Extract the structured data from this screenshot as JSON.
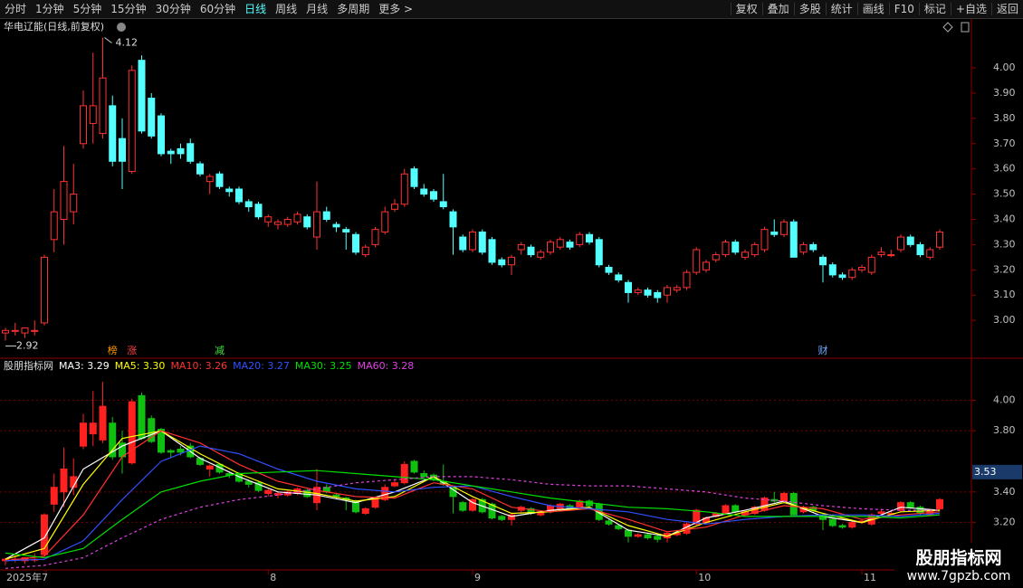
{
  "toolbar": {
    "left": [
      "分时",
      "1分钟",
      "5分钟",
      "15分钟",
      "30分钟",
      "60分钟",
      "日线",
      "周线",
      "月线",
      "多周期",
      "更多 >"
    ],
    "active_index": 6,
    "right": [
      "复权",
      "叠加",
      "多股",
      "统计",
      "画线",
      "F10",
      "标记",
      "+自选",
      "返回"
    ]
  },
  "chart_data": {
    "type": "candlestick",
    "title": "华电辽能(日线,前复权)",
    "up_color": "#ff3232",
    "down_color": "#54ffff",
    "ylim": [
      2.85,
      4.19
    ],
    "yticks": [
      {
        "value": 3,
        "label": "3.00"
      },
      {
        "value": 3.1,
        "label": "3.10"
      },
      {
        "value": 3.2,
        "label": "3.20"
      },
      {
        "value": 3.3,
        "label": "3.30"
      },
      {
        "value": 3.4,
        "label": "3.40"
      },
      {
        "value": 3.5,
        "label": "3.50"
      },
      {
        "value": 3.6,
        "label": "3.60"
      },
      {
        "value": 3.7,
        "label": "3.70"
      },
      {
        "value": 3.8,
        "label": "3.80"
      },
      {
        "value": 3.9,
        "label": "3.90"
      },
      {
        "value": 4,
        "label": "4.00"
      }
    ],
    "high_marker": 4.12,
    "low_marker": 2.92,
    "events": [
      {
        "index": 11,
        "label": "榜",
        "color": "#ff9900"
      },
      {
        "index": 13,
        "label": "涨",
        "color": "#ff4040"
      },
      {
        "index": 22,
        "label": "减",
        "color": "#40e040"
      },
      {
        "index": 84,
        "label": "财",
        "color": "#6fa8ff"
      }
    ],
    "categories": [
      "2025年7",
      null,
      null,
      null,
      null,
      null,
      null,
      null,
      null,
      null,
      null,
      null,
      null,
      null,
      null,
      null,
      null,
      null,
      null,
      null,
      null,
      null,
      null,
      null,
      null,
      null,
      null,
      "8",
      null,
      null,
      null,
      null,
      null,
      null,
      null,
      null,
      null,
      null,
      null,
      null,
      null,
      null,
      null,
      null,
      null,
      null,
      null,
      null,
      "9",
      null,
      null,
      null,
      null,
      null,
      null,
      null,
      null,
      null,
      null,
      null,
      null,
      null,
      null,
      null,
      null,
      null,
      null,
      null,
      null,
      null,
      null,
      "10",
      null,
      null,
      null,
      null,
      null,
      null,
      null,
      null,
      null,
      null,
      null,
      null,
      null,
      null,
      null,
      null,
      "11",
      null,
      null,
      null,
      null,
      null,
      null,
      null,
      null,
      null,
      null
    ],
    "candles": [
      [
        2.95,
        2.97,
        2.92,
        2.96
      ],
      [
        2.96,
        2.99,
        2.94,
        2.96
      ],
      [
        2.95,
        2.97,
        2.93,
        2.97
      ],
      [
        2.96,
        3.0,
        2.94,
        2.96
      ],
      [
        2.99,
        3.26,
        2.98,
        3.25
      ],
      [
        3.32,
        3.52,
        3.27,
        3.43
      ],
      [
        3.4,
        3.69,
        3.3,
        3.55
      ],
      [
        3.43,
        3.62,
        3.38,
        3.5
      ],
      [
        3.7,
        3.91,
        3.68,
        3.85
      ],
      [
        3.78,
        4.06,
        3.7,
        3.85
      ],
      [
        3.74,
        4.12,
        3.72,
        3.96
      ],
      [
        3.85,
        3.89,
        3.61,
        3.63
      ],
      [
        3.72,
        3.8,
        3.52,
        3.63
      ],
      [
        3.59,
        4.01,
        3.58,
        3.99
      ],
      [
        4.03,
        4.05,
        3.74,
        3.75
      ],
      [
        3.88,
        3.9,
        3.72,
        3.73
      ],
      [
        3.81,
        3.82,
        3.65,
        3.66
      ],
      [
        3.67,
        3.68,
        3.62,
        3.66
      ],
      [
        3.68,
        3.7,
        3.64,
        3.66
      ],
      [
        3.7,
        3.72,
        3.62,
        3.63
      ],
      [
        3.62,
        3.63,
        3.57,
        3.58
      ],
      [
        3.55,
        3.58,
        3.5,
        3.57
      ],
      [
        3.58,
        3.59,
        3.52,
        3.53
      ],
      [
        3.52,
        3.53,
        3.49,
        3.51
      ],
      [
        3.52,
        3.53,
        3.46,
        3.47
      ],
      [
        3.47,
        3.48,
        3.43,
        3.45
      ],
      [
        3.46,
        3.47,
        3.4,
        3.41
      ],
      [
        3.39,
        3.42,
        3.37,
        3.41
      ],
      [
        3.38,
        3.4,
        3.36,
        3.39
      ],
      [
        3.38,
        3.41,
        3.37,
        3.4
      ],
      [
        3.39,
        3.43,
        3.38,
        3.42
      ],
      [
        3.41,
        3.42,
        3.36,
        3.37
      ],
      [
        3.33,
        3.55,
        3.28,
        3.43
      ],
      [
        3.43,
        3.45,
        3.39,
        3.4
      ],
      [
        3.38,
        3.39,
        3.35,
        3.37
      ],
      [
        3.36,
        3.37,
        3.28,
        3.35
      ],
      [
        3.34,
        3.35,
        3.26,
        3.27
      ],
      [
        3.26,
        3.3,
        3.25,
        3.29
      ],
      [
        3.3,
        3.37,
        3.29,
        3.36
      ],
      [
        3.35,
        3.45,
        3.34,
        3.43
      ],
      [
        3.44,
        3.48,
        3.43,
        3.46
      ],
      [
        3.46,
        3.6,
        3.45,
        3.58
      ],
      [
        3.6,
        3.61,
        3.52,
        3.53
      ],
      [
        3.52,
        3.54,
        3.49,
        3.5
      ],
      [
        3.51,
        3.52,
        3.47,
        3.48
      ],
      [
        3.47,
        3.58,
        3.44,
        3.45
      ],
      [
        3.43,
        3.44,
        3.26,
        3.37
      ],
      [
        3.33,
        3.34,
        3.27,
        3.28
      ],
      [
        3.28,
        3.36,
        3.27,
        3.35
      ],
      [
        3.35,
        3.36,
        3.26,
        3.27
      ],
      [
        3.32,
        3.33,
        3.22,
        3.23
      ],
      [
        3.24,
        3.25,
        3.21,
        3.22
      ],
      [
        3.22,
        3.26,
        3.18,
        3.25
      ],
      [
        3.28,
        3.31,
        3.26,
        3.3
      ],
      [
        3.29,
        3.3,
        3.25,
        3.26
      ],
      [
        3.25,
        3.28,
        3.24,
        3.27
      ],
      [
        3.27,
        3.32,
        3.26,
        3.31
      ],
      [
        3.29,
        3.33,
        3.28,
        3.32
      ],
      [
        3.31,
        3.32,
        3.28,
        3.29
      ],
      [
        3.3,
        3.35,
        3.29,
        3.34
      ],
      [
        3.34,
        3.35,
        3.3,
        3.31
      ],
      [
        3.32,
        3.33,
        3.21,
        3.22
      ],
      [
        3.21,
        3.22,
        3.18,
        3.19
      ],
      [
        3.18,
        3.19,
        3.15,
        3.16
      ],
      [
        3.15,
        3.16,
        3.07,
        3.11
      ],
      [
        3.11,
        3.13,
        3.1,
        3.12
      ],
      [
        3.12,
        3.13,
        3.09,
        3.1
      ],
      [
        3.11,
        3.12,
        3.07,
        3.09
      ],
      [
        3.1,
        3.14,
        3.07,
        3.13
      ],
      [
        3.12,
        3.14,
        3.11,
        3.13
      ],
      [
        3.13,
        3.2,
        3.12,
        3.19
      ],
      [
        3.19,
        3.29,
        3.18,
        3.28
      ],
      [
        3.2,
        3.24,
        3.19,
        3.23
      ],
      [
        3.24,
        3.27,
        3.23,
        3.26
      ],
      [
        3.26,
        3.32,
        3.25,
        3.31
      ],
      [
        3.31,
        3.32,
        3.26,
        3.27
      ],
      [
        3.25,
        3.28,
        3.24,
        3.27
      ],
      [
        3.26,
        3.31,
        3.25,
        3.3
      ],
      [
        3.28,
        3.37,
        3.27,
        3.36
      ],
      [
        3.35,
        3.4,
        3.33,
        3.34
      ],
      [
        3.34,
        3.4,
        3.33,
        3.39
      ],
      [
        3.39,
        3.4,
        3.25,
        3.25
      ],
      [
        3.27,
        3.31,
        3.26,
        3.3
      ],
      [
        3.3,
        3.31,
        3.27,
        3.28
      ],
      [
        3.25,
        3.26,
        3.15,
        3.22
      ],
      [
        3.22,
        3.23,
        3.17,
        3.18
      ],
      [
        3.18,
        3.19,
        3.16,
        3.17
      ],
      [
        3.17,
        3.21,
        3.16,
        3.2
      ],
      [
        3.2,
        3.22,
        3.19,
        3.21
      ],
      [
        3.19,
        3.26,
        3.18,
        3.25
      ],
      [
        3.26,
        3.29,
        3.25,
        3.27
      ],
      [
        3.26,
        3.28,
        3.25,
        3.26
      ],
      [
        3.28,
        3.34,
        3.27,
        3.33
      ],
      [
        3.33,
        3.34,
        3.29,
        3.3
      ],
      [
        3.3,
        3.31,
        3.25,
        3.26
      ],
      [
        3.25,
        3.29,
        3.24,
        3.28
      ],
      [
        3.29,
        3.36,
        3.28,
        3.35
      ]
    ],
    "lower": {
      "title": "股朋指标网",
      "up_color": "#ff2020",
      "down_color": "#10c010",
      "ylim": [
        2.89,
        4.18
      ],
      "yticks": [
        {
          "value": 3.2,
          "label": "3.20"
        },
        {
          "value": 3.4,
          "label": "3.40"
        },
        {
          "value": 3.8,
          "label": "3.80"
        },
        {
          "value": 4,
          "label": "4.00"
        }
      ],
      "current_value": 3.53,
      "x": [
        0,
        4,
        8,
        12,
        16,
        20,
        24,
        28,
        32,
        36,
        40,
        44,
        48,
        52,
        56,
        60,
        64,
        68,
        72,
        76,
        80,
        84,
        88,
        92,
        96
      ],
      "series": [
        {
          "name": "MA3",
          "legend": "MA3: 3.29",
          "color": "#ffffff",
          "dashed": false,
          "values": [
            2.96,
            3.1,
            3.55,
            3.7,
            3.8,
            3.62,
            3.5,
            3.4,
            3.38,
            3.33,
            3.4,
            3.5,
            3.33,
            3.24,
            3.28,
            3.3,
            3.15,
            3.11,
            3.23,
            3.28,
            3.34,
            3.24,
            3.2,
            3.3,
            3.28
          ]
        },
        {
          "name": "MA5",
          "legend": "MA5: 3.30",
          "color": "#ffff00",
          "dashed": false,
          "values": [
            2.96,
            3.03,
            3.45,
            3.75,
            3.8,
            3.65,
            3.52,
            3.42,
            3.39,
            3.34,
            3.37,
            3.5,
            3.37,
            3.26,
            3.27,
            3.3,
            3.18,
            3.11,
            3.2,
            3.27,
            3.33,
            3.26,
            3.2,
            3.27,
            3.28
          ]
        },
        {
          "name": "MA10",
          "legend": "MA10: 3.26",
          "color": "#ff3030",
          "dashed": false,
          "values": [
            2.95,
            2.98,
            3.25,
            3.63,
            3.8,
            3.72,
            3.58,
            3.47,
            3.41,
            3.37,
            3.36,
            3.46,
            3.42,
            3.3,
            3.27,
            3.29,
            3.22,
            3.14,
            3.17,
            3.25,
            3.31,
            3.29,
            3.22,
            3.25,
            3.27
          ]
        },
        {
          "name": "MA20",
          "legend": "MA20: 3.27",
          "color": "#3050ff",
          "dashed": false,
          "values": [
            2.95,
            2.96,
            3.08,
            3.35,
            3.6,
            3.7,
            3.65,
            3.55,
            3.47,
            3.42,
            3.4,
            3.43,
            3.44,
            3.37,
            3.31,
            3.29,
            3.27,
            3.22,
            3.19,
            3.22,
            3.24,
            3.25,
            3.25,
            3.24,
            3.26
          ]
        },
        {
          "name": "MA30",
          "legend": "MA30: 3.25",
          "color": "#00e000",
          "dashed": false,
          "values": [
            3.0,
            2.97,
            3.03,
            3.22,
            3.4,
            3.47,
            3.52,
            3.53,
            3.54,
            3.52,
            3.5,
            3.48,
            3.44,
            3.4,
            3.36,
            3.33,
            3.3,
            3.29,
            3.27,
            3.24,
            3.24,
            3.24,
            3.24,
            3.23,
            3.25
          ]
        },
        {
          "name": "MA60",
          "legend": "MA60: 3.28",
          "color": "#e040e0",
          "dashed": true,
          "values": [
            2.9,
            2.92,
            2.97,
            3.1,
            3.22,
            3.3,
            3.35,
            3.38,
            3.42,
            3.46,
            3.48,
            3.5,
            3.5,
            3.48,
            3.45,
            3.44,
            3.44,
            3.42,
            3.4,
            3.36,
            3.34,
            3.31,
            3.29,
            3.28,
            3.28
          ]
        }
      ]
    }
  },
  "watermark": {
    "name": "股朋指标网",
    "url": "www.7gpzb.com"
  }
}
